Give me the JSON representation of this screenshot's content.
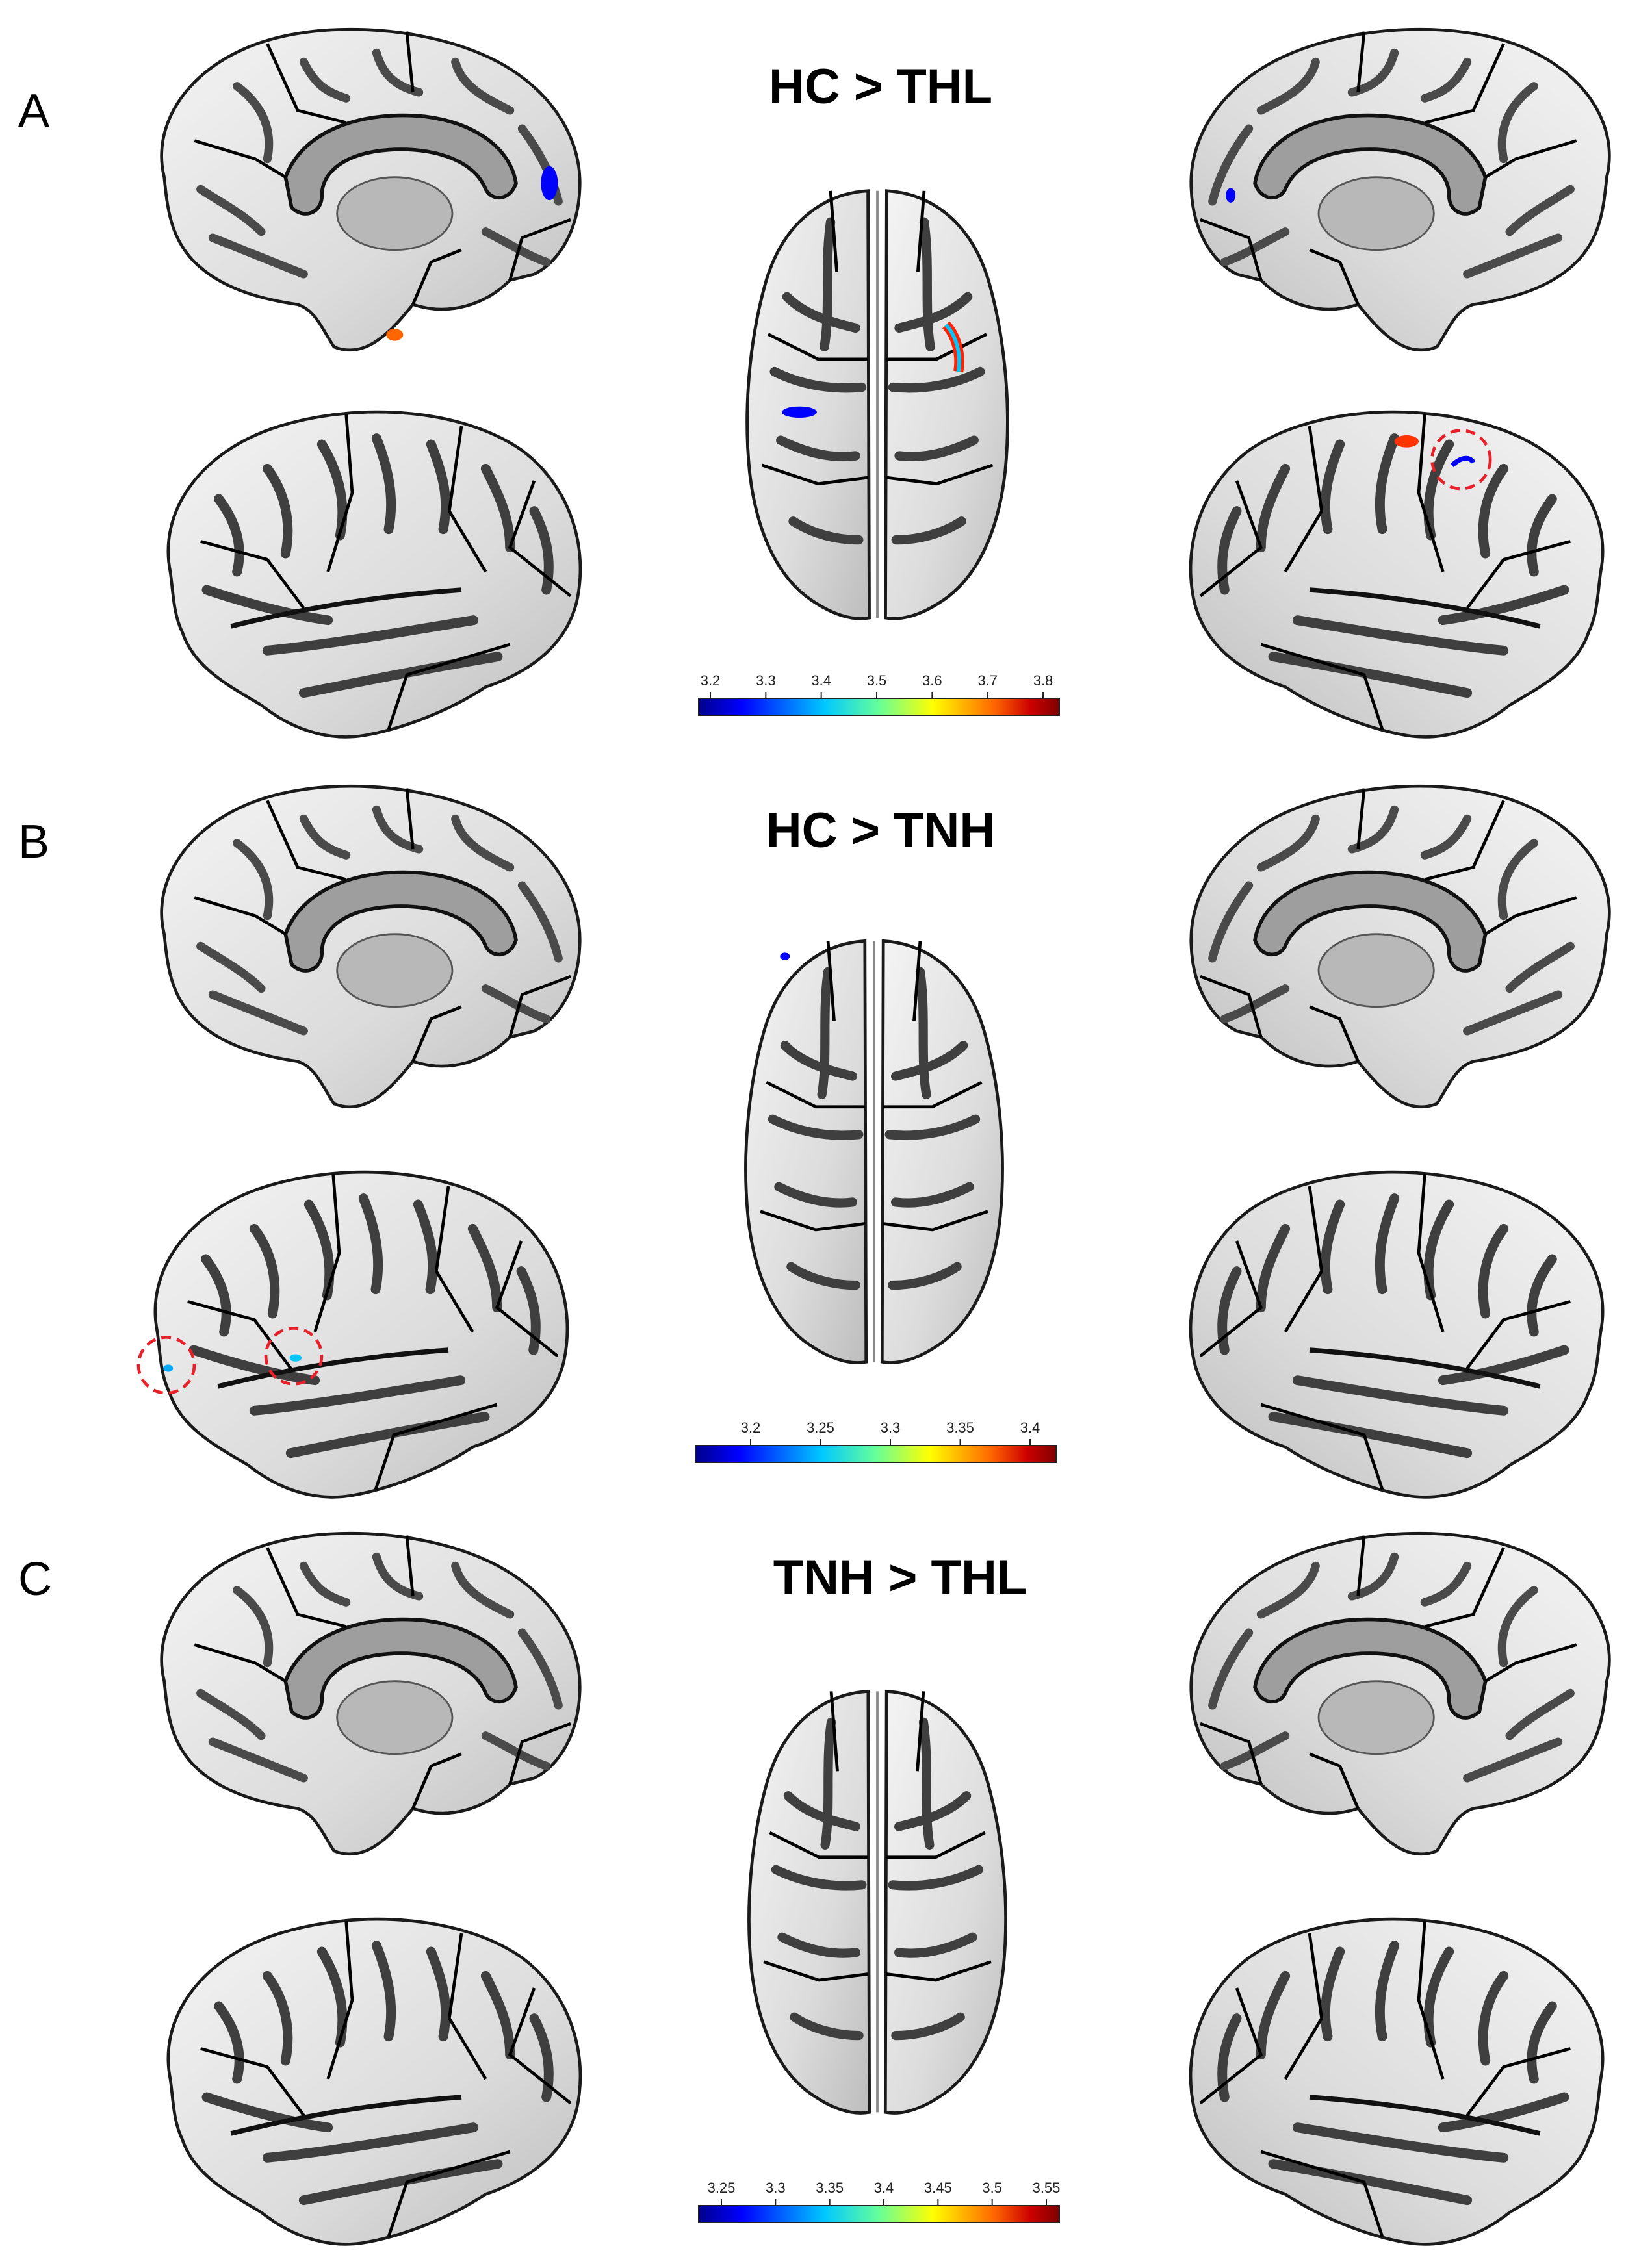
{
  "panels": [
    {
      "letter": "A",
      "title": "HC > THL",
      "colorbar_ticks": [
        "3.2",
        "3.3",
        "3.4",
        "3.5",
        "3.6",
        "3.7",
        "3.8"
      ]
    },
    {
      "letter": "B",
      "title": "HC > TNH",
      "colorbar_ticks": [
        "3.2",
        "3.25",
        "3.3",
        "3.35",
        "3.4"
      ]
    },
    {
      "letter": "C",
      "title": "TNH > THL",
      "colorbar_ticks": [
        "3.25",
        "3.3",
        "3.35",
        "3.4",
        "3.45",
        "3.5",
        "3.55"
      ]
    }
  ],
  "colormap": [
    "#00008b",
    "#0000ff",
    "#00c8ff",
    "#66ff99",
    "#ffff00",
    "#ff6600",
    "#cc0000",
    "#800000"
  ]
}
